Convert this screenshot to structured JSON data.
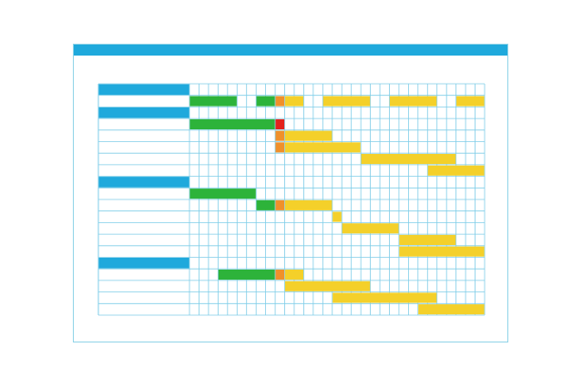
{
  "colors": {
    "titlebar": "#1fa9dc",
    "grid_line": "#7fcde8",
    "section_header": "#1fa9dc",
    "done": "#2db33a",
    "milestone": "#f0902a",
    "critical": "#e3221c",
    "planned": "#f4d02a"
  },
  "gantt": {
    "columns": 31,
    "rows": [
      {
        "type": "header",
        "bars": []
      },
      {
        "type": "task",
        "bars": [
          {
            "start": 0,
            "len": 5,
            "kind": "done"
          },
          {
            "start": 7,
            "len": 2,
            "kind": "done"
          },
          {
            "start": 9,
            "len": 1,
            "kind": "milestone"
          },
          {
            "start": 10,
            "len": 2,
            "kind": "planned"
          },
          {
            "start": 14,
            "len": 5,
            "kind": "planned"
          },
          {
            "start": 21,
            "len": 5,
            "kind": "planned"
          },
          {
            "start": 28,
            "len": 3,
            "kind": "planned"
          }
        ]
      },
      {
        "type": "header",
        "bars": []
      },
      {
        "type": "task",
        "bars": [
          {
            "start": 0,
            "len": 9,
            "kind": "done"
          },
          {
            "start": 9,
            "len": 1,
            "kind": "critical"
          }
        ]
      },
      {
        "type": "task",
        "bars": [
          {
            "start": 9,
            "len": 1,
            "kind": "milestone"
          },
          {
            "start": 10,
            "len": 5,
            "kind": "planned"
          }
        ]
      },
      {
        "type": "task",
        "bars": [
          {
            "start": 9,
            "len": 1,
            "kind": "milestone"
          },
          {
            "start": 10,
            "len": 8,
            "kind": "planned"
          }
        ]
      },
      {
        "type": "task",
        "bars": [
          {
            "start": 18,
            "len": 10,
            "kind": "planned"
          }
        ]
      },
      {
        "type": "task",
        "bars": [
          {
            "start": 25,
            "len": 6,
            "kind": "planned"
          }
        ]
      },
      {
        "type": "header",
        "bars": []
      },
      {
        "type": "task",
        "bars": [
          {
            "start": 0,
            "len": 7,
            "kind": "done"
          }
        ]
      },
      {
        "type": "task",
        "bars": [
          {
            "start": 7,
            "len": 2,
            "kind": "done"
          },
          {
            "start": 9,
            "len": 1,
            "kind": "milestone"
          },
          {
            "start": 10,
            "len": 5,
            "kind": "planned"
          }
        ]
      },
      {
        "type": "task",
        "bars": [
          {
            "start": 15,
            "len": 1,
            "kind": "planned"
          }
        ]
      },
      {
        "type": "task",
        "bars": [
          {
            "start": 16,
            "len": 6,
            "kind": "planned"
          }
        ]
      },
      {
        "type": "task",
        "bars": [
          {
            "start": 22,
            "len": 6,
            "kind": "planned"
          }
        ]
      },
      {
        "type": "task",
        "bars": [
          {
            "start": 22,
            "len": 9,
            "kind": "planned"
          }
        ]
      },
      {
        "type": "header",
        "bars": []
      },
      {
        "type": "task",
        "bars": [
          {
            "start": 3,
            "len": 6,
            "kind": "done"
          },
          {
            "start": 9,
            "len": 1,
            "kind": "milestone"
          },
          {
            "start": 10,
            "len": 2,
            "kind": "planned"
          }
        ]
      },
      {
        "type": "task",
        "bars": [
          {
            "start": 10,
            "len": 9,
            "kind": "planned"
          }
        ]
      },
      {
        "type": "task",
        "bars": [
          {
            "start": 15,
            "len": 11,
            "kind": "planned"
          }
        ]
      },
      {
        "type": "task",
        "bars": [
          {
            "start": 24,
            "len": 7,
            "kind": "planned"
          }
        ]
      }
    ]
  }
}
